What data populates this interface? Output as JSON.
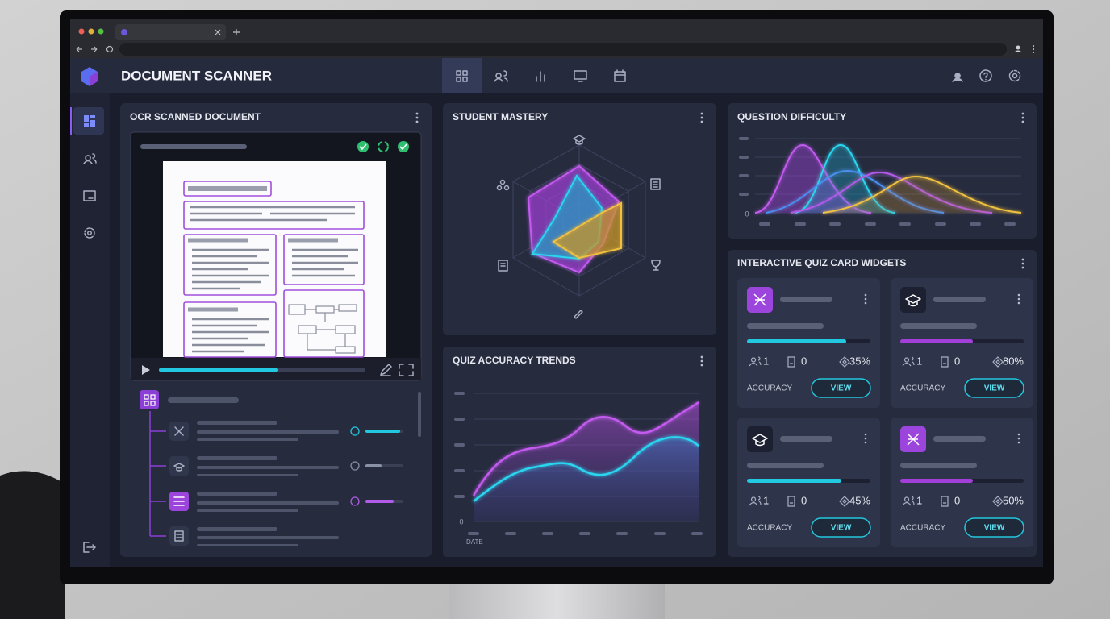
{
  "header": {
    "title": "DOCUMENT SCANNER"
  },
  "panels": {
    "ocr": {
      "title": "OCR SCANNED DOCUMENT"
    },
    "mastery": {
      "title": "STUDENT MASTERY"
    },
    "difficulty": {
      "title": "QUESTION DIFFICULTY",
      "axis_zero": 0
    },
    "accuracy": {
      "title": "QUIZ ACCURACY TRENDS",
      "axis_zero": 0,
      "x_label": "DATE"
    },
    "widgets": {
      "title": "INTERACTIVE QUIZ CARD WIDGETS",
      "cards": [
        {
          "users": 1,
          "documents": 0,
          "accuracy": "35%",
          "label": "ACCURACY",
          "button": "VIEW"
        },
        {
          "users": 1,
          "documents": 0,
          "accuracy": "80%",
          "label": "ACCURACY",
          "button": "VIEW"
        },
        {
          "users": 1,
          "documents": 0,
          "accuracy": "45%",
          "label": "ACCURACY",
          "button": "VIEW"
        },
        {
          "users": 1,
          "documents": 0,
          "accuracy": "50%",
          "label": "ACCURACY",
          "button": "VIEW"
        }
      ]
    }
  }
}
